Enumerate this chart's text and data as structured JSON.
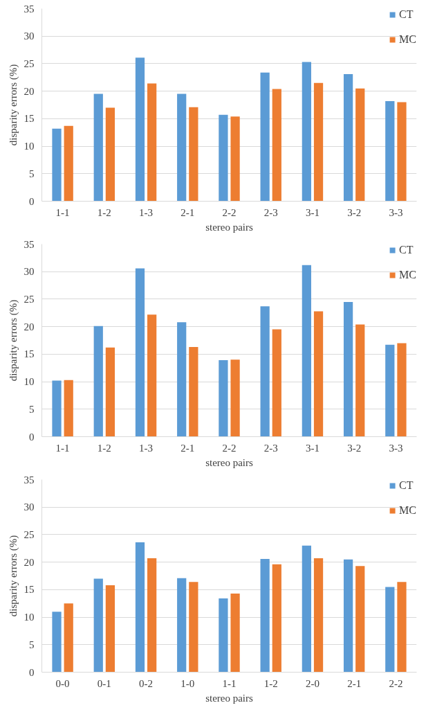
{
  "chart_data": [
    {
      "type": "bar",
      "xlabel": "stereo pairs",
      "ylabel": "disparity errors (%)",
      "categories": [
        "1-1",
        "1-2",
        "1-3",
        "2-1",
        "2-2",
        "2-3",
        "3-1",
        "3-2",
        "3-3"
      ],
      "ylim": [
        0,
        35
      ],
      "yticks": [
        0,
        5,
        10,
        15,
        20,
        25,
        30,
        35
      ],
      "grid": "y",
      "legend": "top right",
      "series": [
        {
          "name": "CT",
          "color": "#5b9bd5",
          "values": [
            13.2,
            19.5,
            26.1,
            19.5,
            15.7,
            23.4,
            25.3,
            23.1,
            18.2
          ]
        },
        {
          "name": "MC",
          "color": "#ed7d31",
          "values": [
            13.7,
            17.0,
            21.4,
            17.1,
            15.4,
            20.4,
            21.5,
            20.5,
            18.0
          ]
        }
      ]
    },
    {
      "type": "bar",
      "xlabel": "stereo pairs",
      "ylabel": "disparity errors (%)",
      "categories": [
        "1-1",
        "1-2",
        "1-3",
        "2-1",
        "2-2",
        "2-3",
        "3-1",
        "3-2",
        "3-3"
      ],
      "ylim": [
        0,
        35
      ],
      "yticks": [
        0,
        5,
        10,
        15,
        20,
        25,
        30,
        35
      ],
      "grid": "y",
      "legend": "top right",
      "series": [
        {
          "name": "CT",
          "color": "#5b9bd5",
          "values": [
            10.2,
            20.1,
            30.6,
            20.8,
            13.9,
            23.7,
            31.2,
            24.5,
            16.7
          ]
        },
        {
          "name": "MC",
          "color": "#ed7d31",
          "values": [
            10.3,
            16.2,
            22.2,
            16.3,
            14.0,
            19.5,
            22.8,
            20.4,
            17.0
          ]
        }
      ]
    },
    {
      "type": "bar",
      "xlabel": "stereo pairs",
      "ylabel": "disparity errors (%)",
      "categories": [
        "0-0",
        "0-1",
        "0-2",
        "1-0",
        "1-1",
        "1-2",
        "2-0",
        "2-1",
        "2-2"
      ],
      "ylim": [
        0,
        35
      ],
      "yticks": [
        0,
        5,
        10,
        15,
        20,
        25,
        30,
        35
      ],
      "grid": "y",
      "legend": "top right",
      "series": [
        {
          "name": "CT",
          "color": "#5b9bd5",
          "values": [
            11.0,
            17.0,
            23.6,
            17.1,
            13.4,
            20.6,
            23.0,
            20.5,
            15.5
          ]
        },
        {
          "name": "MC",
          "color": "#ed7d31",
          "values": [
            12.5,
            15.8,
            20.7,
            16.4,
            14.3,
            19.6,
            20.7,
            19.3,
            16.4
          ]
        }
      ]
    }
  ]
}
